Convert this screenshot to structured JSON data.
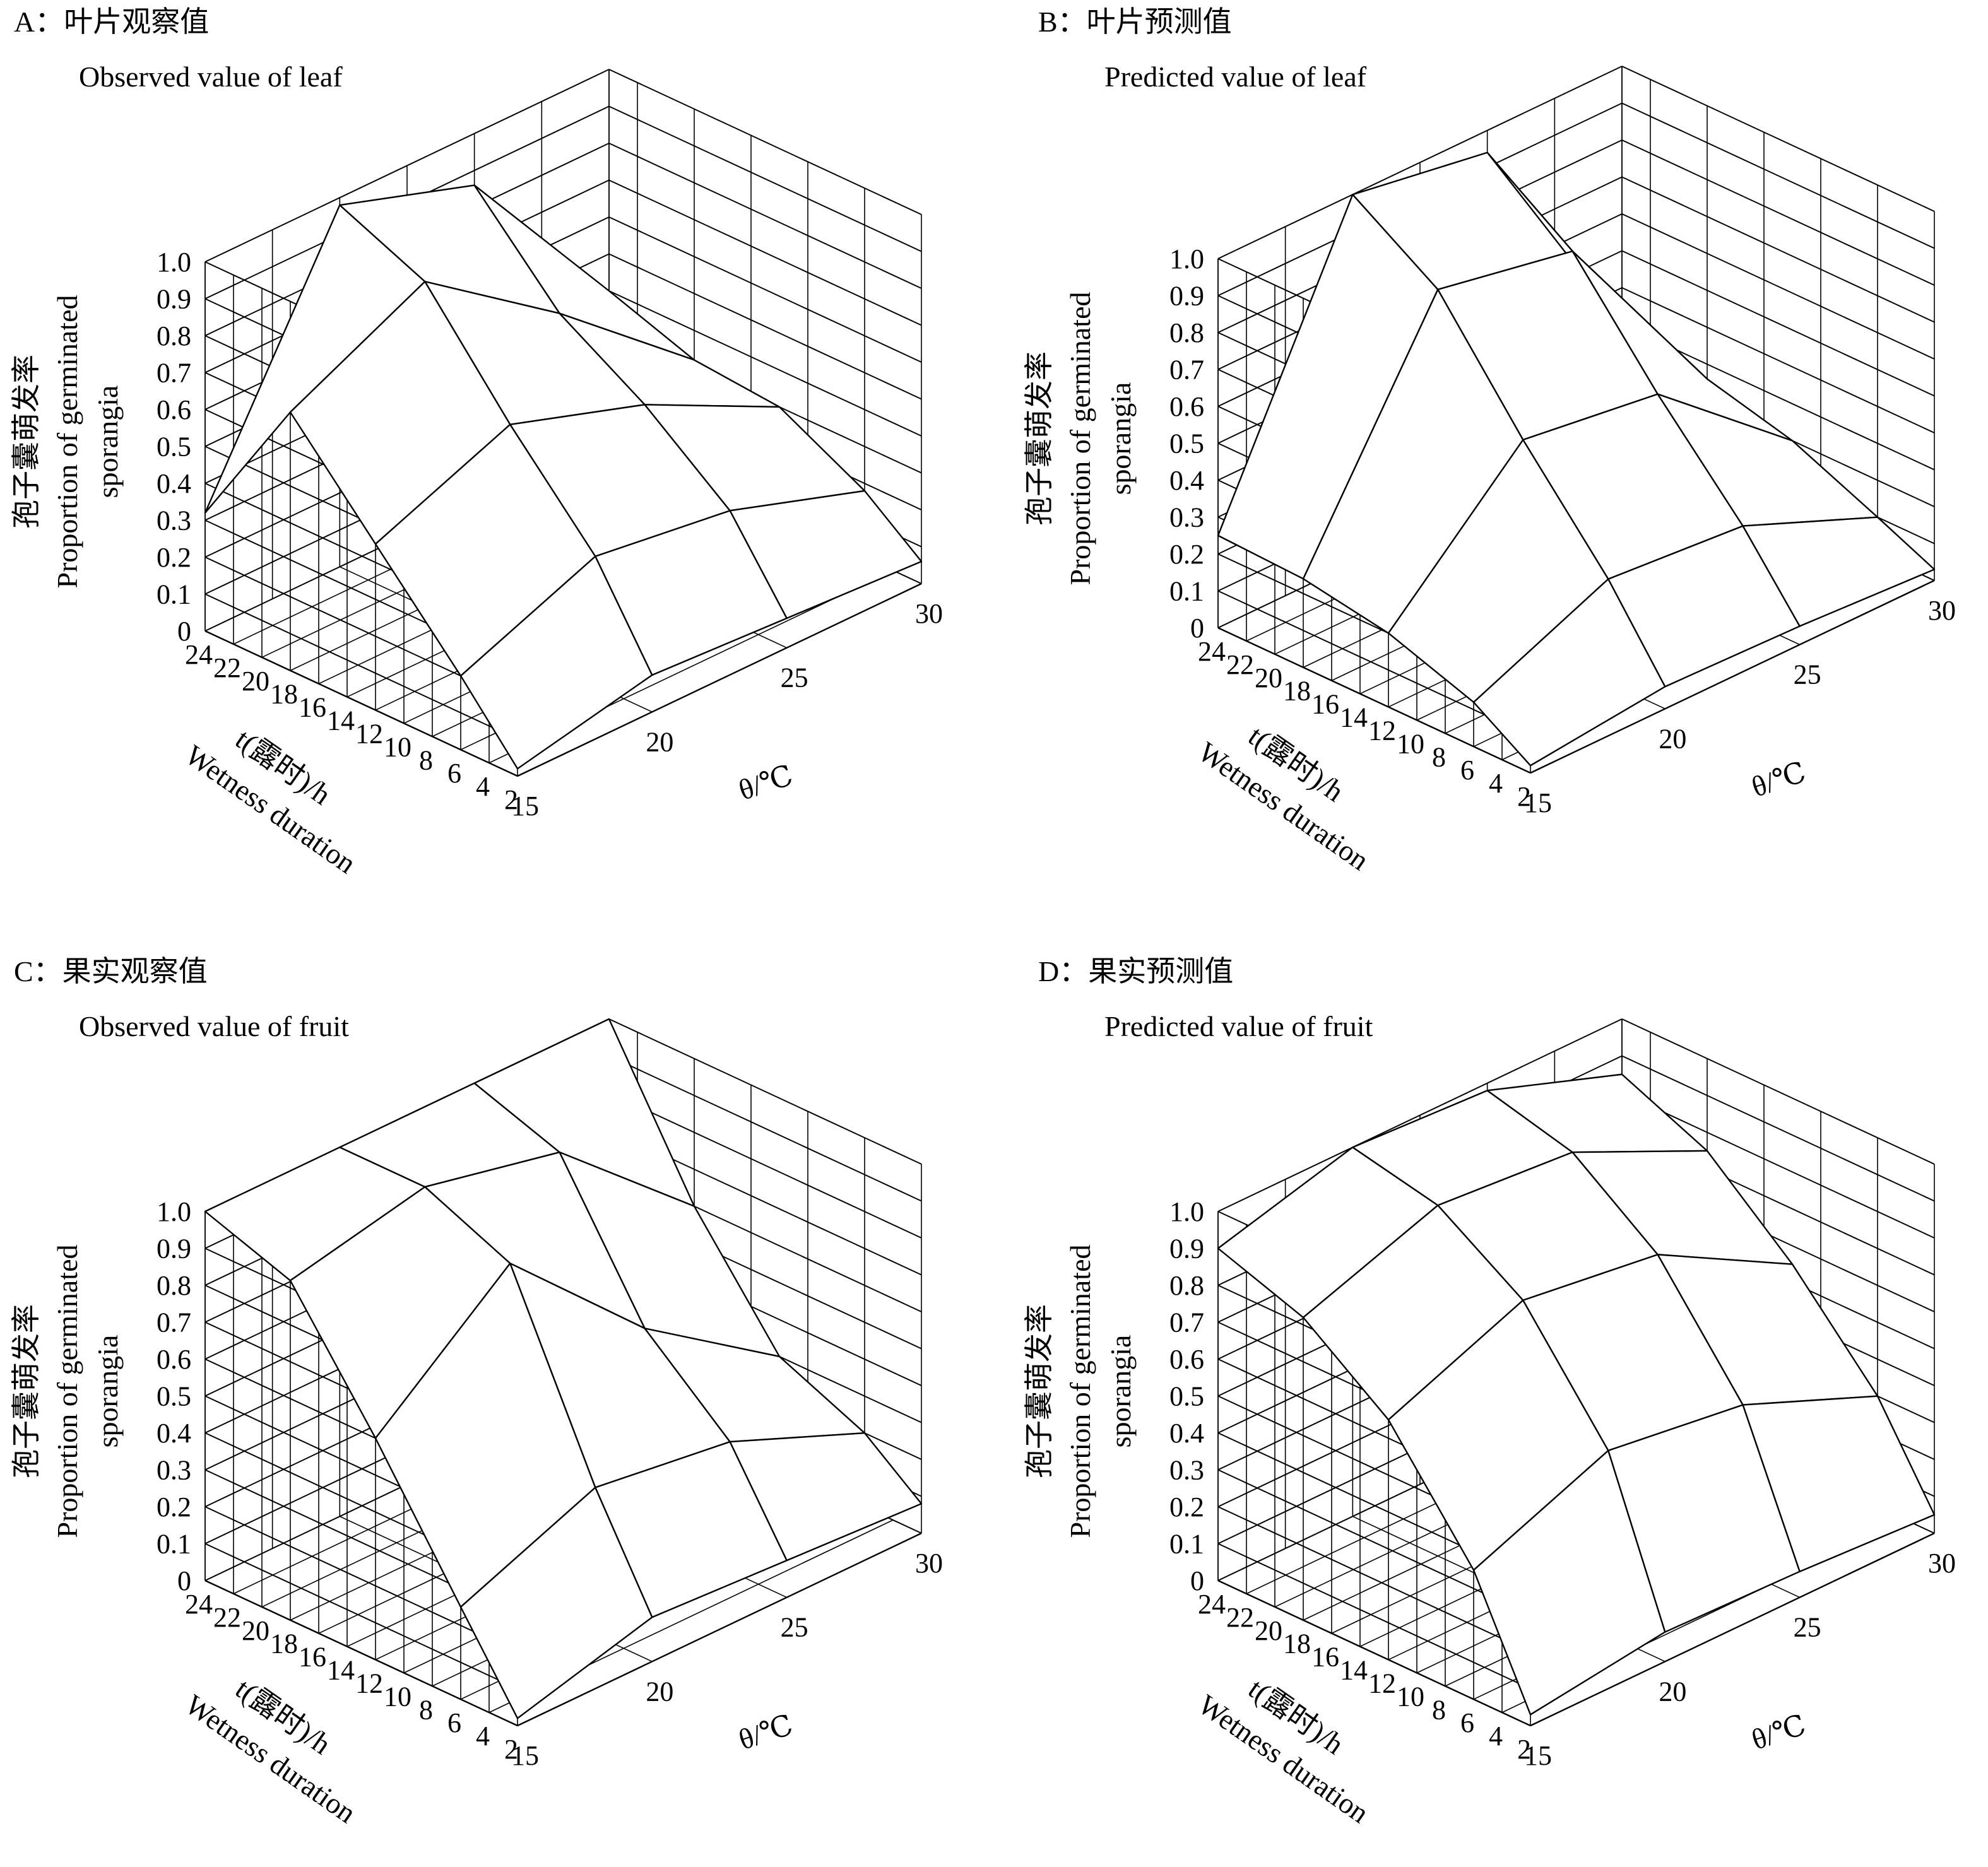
{
  "figure": {
    "background": "#ffffff",
    "line_color": "#000000",
    "panels": [
      {
        "id": "A",
        "title_cn": "A：叶片观察值",
        "title_en": "Observed value of  leaf",
        "ylabel_cn": "孢子囊萌发率",
        "ylabel_en_1": "Proportion of germinated",
        "ylabel_en_2": "sporangia",
        "t_label_1": "t(露时)/h",
        "t_label_2": "Wetness duration",
        "theta_label": "θ/℃"
      },
      {
        "id": "B",
        "title_cn": "B：叶片预测值",
        "title_en": "Predicted  value of leaf",
        "ylabel_cn": "孢子囊萌发率",
        "ylabel_en_1": "Proportion of germinated",
        "ylabel_en_2": "sporangia",
        "t_label_1": "t(露时)/h",
        "t_label_2": "Wetness duration",
        "theta_label": "θ/℃"
      },
      {
        "id": "C",
        "title_cn": "C：果实观察值",
        "title_en": "Observed  value of fruit",
        "ylabel_cn": "孢子囊萌发率",
        "ylabel_en_1": "Proportion of germinated",
        "ylabel_en_2": "sporangia",
        "t_label_1": "t(露时)/h",
        "t_label_2": "Wetness duration",
        "theta_label": "θ/℃"
      },
      {
        "id": "D",
        "title_cn": "D：果实预测值",
        "title_en": "Predicted  value of fruit",
        "ylabel_cn": "孢子囊萌发率",
        "ylabel_en_1": "Proportion of germinated",
        "ylabel_en_2": "sporangia",
        "t_label_1": "t(露时)/h",
        "t_label_2": "Wetness duration",
        "theta_label": "θ/℃"
      }
    ]
  },
  "chart_data": [
    {
      "type": "surface",
      "panel": "A",
      "title": "A：叶片观察值 Observed value of  leaf",
      "x_label": "θ/℃",
      "y_label": "t(露时)/h Wetness duration",
      "z_label": "孢子囊萌发率 Proportion of germinated sporangia",
      "x_ticks": [
        "15",
        "20",
        "25",
        "30"
      ],
      "y_ticks": [
        "24",
        "22",
        "20",
        "18",
        "16",
        "14",
        "12",
        "10",
        "8",
        "6",
        "4",
        "2"
      ],
      "z_ticks": [
        "0",
        "0.1",
        "0.2",
        "0.3",
        "0.4",
        "0.5",
        "0.6",
        "0.7",
        "0.8",
        "0.9",
        "1.0"
      ],
      "x_range": [
        15,
        30
      ],
      "y_range": [
        2,
        24
      ],
      "z_range": [
        0,
        1
      ],
      "temperature": [
        15,
        20,
        25,
        30
      ],
      "wetness_duration": [
        2,
        6,
        12,
        18,
        24
      ],
      "z": [
        [
          0.02,
          0.1,
          0.08,
          0.06
        ],
        [
          0.2,
          0.35,
          0.3,
          0.18
        ],
        [
          0.45,
          0.6,
          0.48,
          0.3
        ],
        [
          0.7,
          0.88,
          0.62,
          0.32
        ],
        [
          0.32,
          0.98,
          0.86,
          0.4
        ]
      ]
    },
    {
      "type": "surface",
      "panel": "B",
      "title": "B：叶片预测值 Predicted  value of leaf",
      "x_label": "θ/℃",
      "y_label": "t(露时)/h Wetness duration",
      "z_label": "孢子囊萌发率 Proportion of germinated sporangia",
      "x_ticks": [
        "15",
        "20",
        "25",
        "30"
      ],
      "y_ticks": [
        "24",
        "22",
        "20",
        "18",
        "16",
        "14",
        "12",
        "10",
        "8",
        "6",
        "4",
        "2"
      ],
      "z_ticks": [
        "0",
        "0.1",
        "0.2",
        "0.3",
        "0.4",
        "0.5",
        "0.6",
        "0.7",
        "0.8",
        "0.9",
        "1.0"
      ],
      "x_range": [
        15,
        30
      ],
      "y_range": [
        2,
        24
      ],
      "z_range": [
        0,
        1
      ],
      "temperature": [
        15,
        20,
        25,
        30
      ],
      "wetness_duration": [
        2,
        6,
        12,
        18,
        24
      ],
      "z": [
        [
          0.02,
          0.06,
          0.05,
          0.03
        ],
        [
          0.12,
          0.28,
          0.25,
          0.1
        ],
        [
          0.2,
          0.55,
          0.5,
          0.2
        ],
        [
          0.24,
          0.85,
          0.78,
          0.26
        ],
        [
          0.25,
          1.0,
          0.94,
          0.3
        ]
      ]
    },
    {
      "type": "surface",
      "panel": "C",
      "title": "C：果实观察值 Observed  value of fruit",
      "x_label": "θ/℃",
      "y_label": "t(露时)/h Wetness duration",
      "z_label": "孢子囊萌发率 Proportion of germinated sporangia",
      "x_ticks": [
        "15",
        "20",
        "25",
        "30"
      ],
      "y_ticks": [
        "24",
        "22",
        "20",
        "18",
        "16",
        "14",
        "12",
        "10",
        "8",
        "6",
        "4",
        "2"
      ],
      "z_ticks": [
        "0",
        "0.1",
        "0.2",
        "0.3",
        "0.4",
        "0.5",
        "0.6",
        "0.7",
        "0.8",
        "0.9",
        "1.0"
      ],
      "x_range": [
        15,
        30
      ],
      "y_range": [
        2,
        24
      ],
      "z_range": [
        0,
        1
      ],
      "temperature": [
        15,
        20,
        25,
        30
      ],
      "wetness_duration": [
        2,
        6,
        12,
        18,
        24
      ],
      "z": [
        [
          0.02,
          0.12,
          0.1,
          0.08
        ],
        [
          0.25,
          0.4,
          0.35,
          0.2
        ],
        [
          0.6,
          0.9,
          0.55,
          0.3
        ],
        [
          0.92,
          1.0,
          0.92,
          0.6
        ],
        [
          1.0,
          1.0,
          1.0,
          1.0
        ]
      ]
    },
    {
      "type": "surface",
      "panel": "D",
      "title": "D：果实预测值 Predicted  value of fruit",
      "x_label": "θ/℃",
      "y_label": "t(露时)/h Wetness duration",
      "z_label": "孢子囊萌发率 Proportion of germinated sporangia",
      "x_ticks": [
        "15",
        "20",
        "25",
        "30"
      ],
      "y_ticks": [
        "24",
        "22",
        "20",
        "18",
        "16",
        "14",
        "12",
        "10",
        "8",
        "6",
        "4",
        "2"
      ],
      "z_ticks": [
        "0",
        "0.1",
        "0.2",
        "0.3",
        "0.4",
        "0.5",
        "0.6",
        "0.7",
        "0.8",
        "0.9",
        "1.0"
      ],
      "x_range": [
        15,
        30
      ],
      "y_range": [
        2,
        24
      ],
      "z_range": [
        0,
        1
      ],
      "temperature": [
        15,
        20,
        25,
        30
      ],
      "wetness_duration": [
        2,
        6,
        12,
        18,
        24
      ],
      "z": [
        [
          0.03,
          0.08,
          0.07,
          0.05
        ],
        [
          0.35,
          0.5,
          0.45,
          0.3
        ],
        [
          0.65,
          0.8,
          0.75,
          0.55
        ],
        [
          0.82,
          0.95,
          0.92,
          0.75
        ],
        [
          0.9,
          1.0,
          0.98,
          0.85
        ]
      ]
    }
  ]
}
